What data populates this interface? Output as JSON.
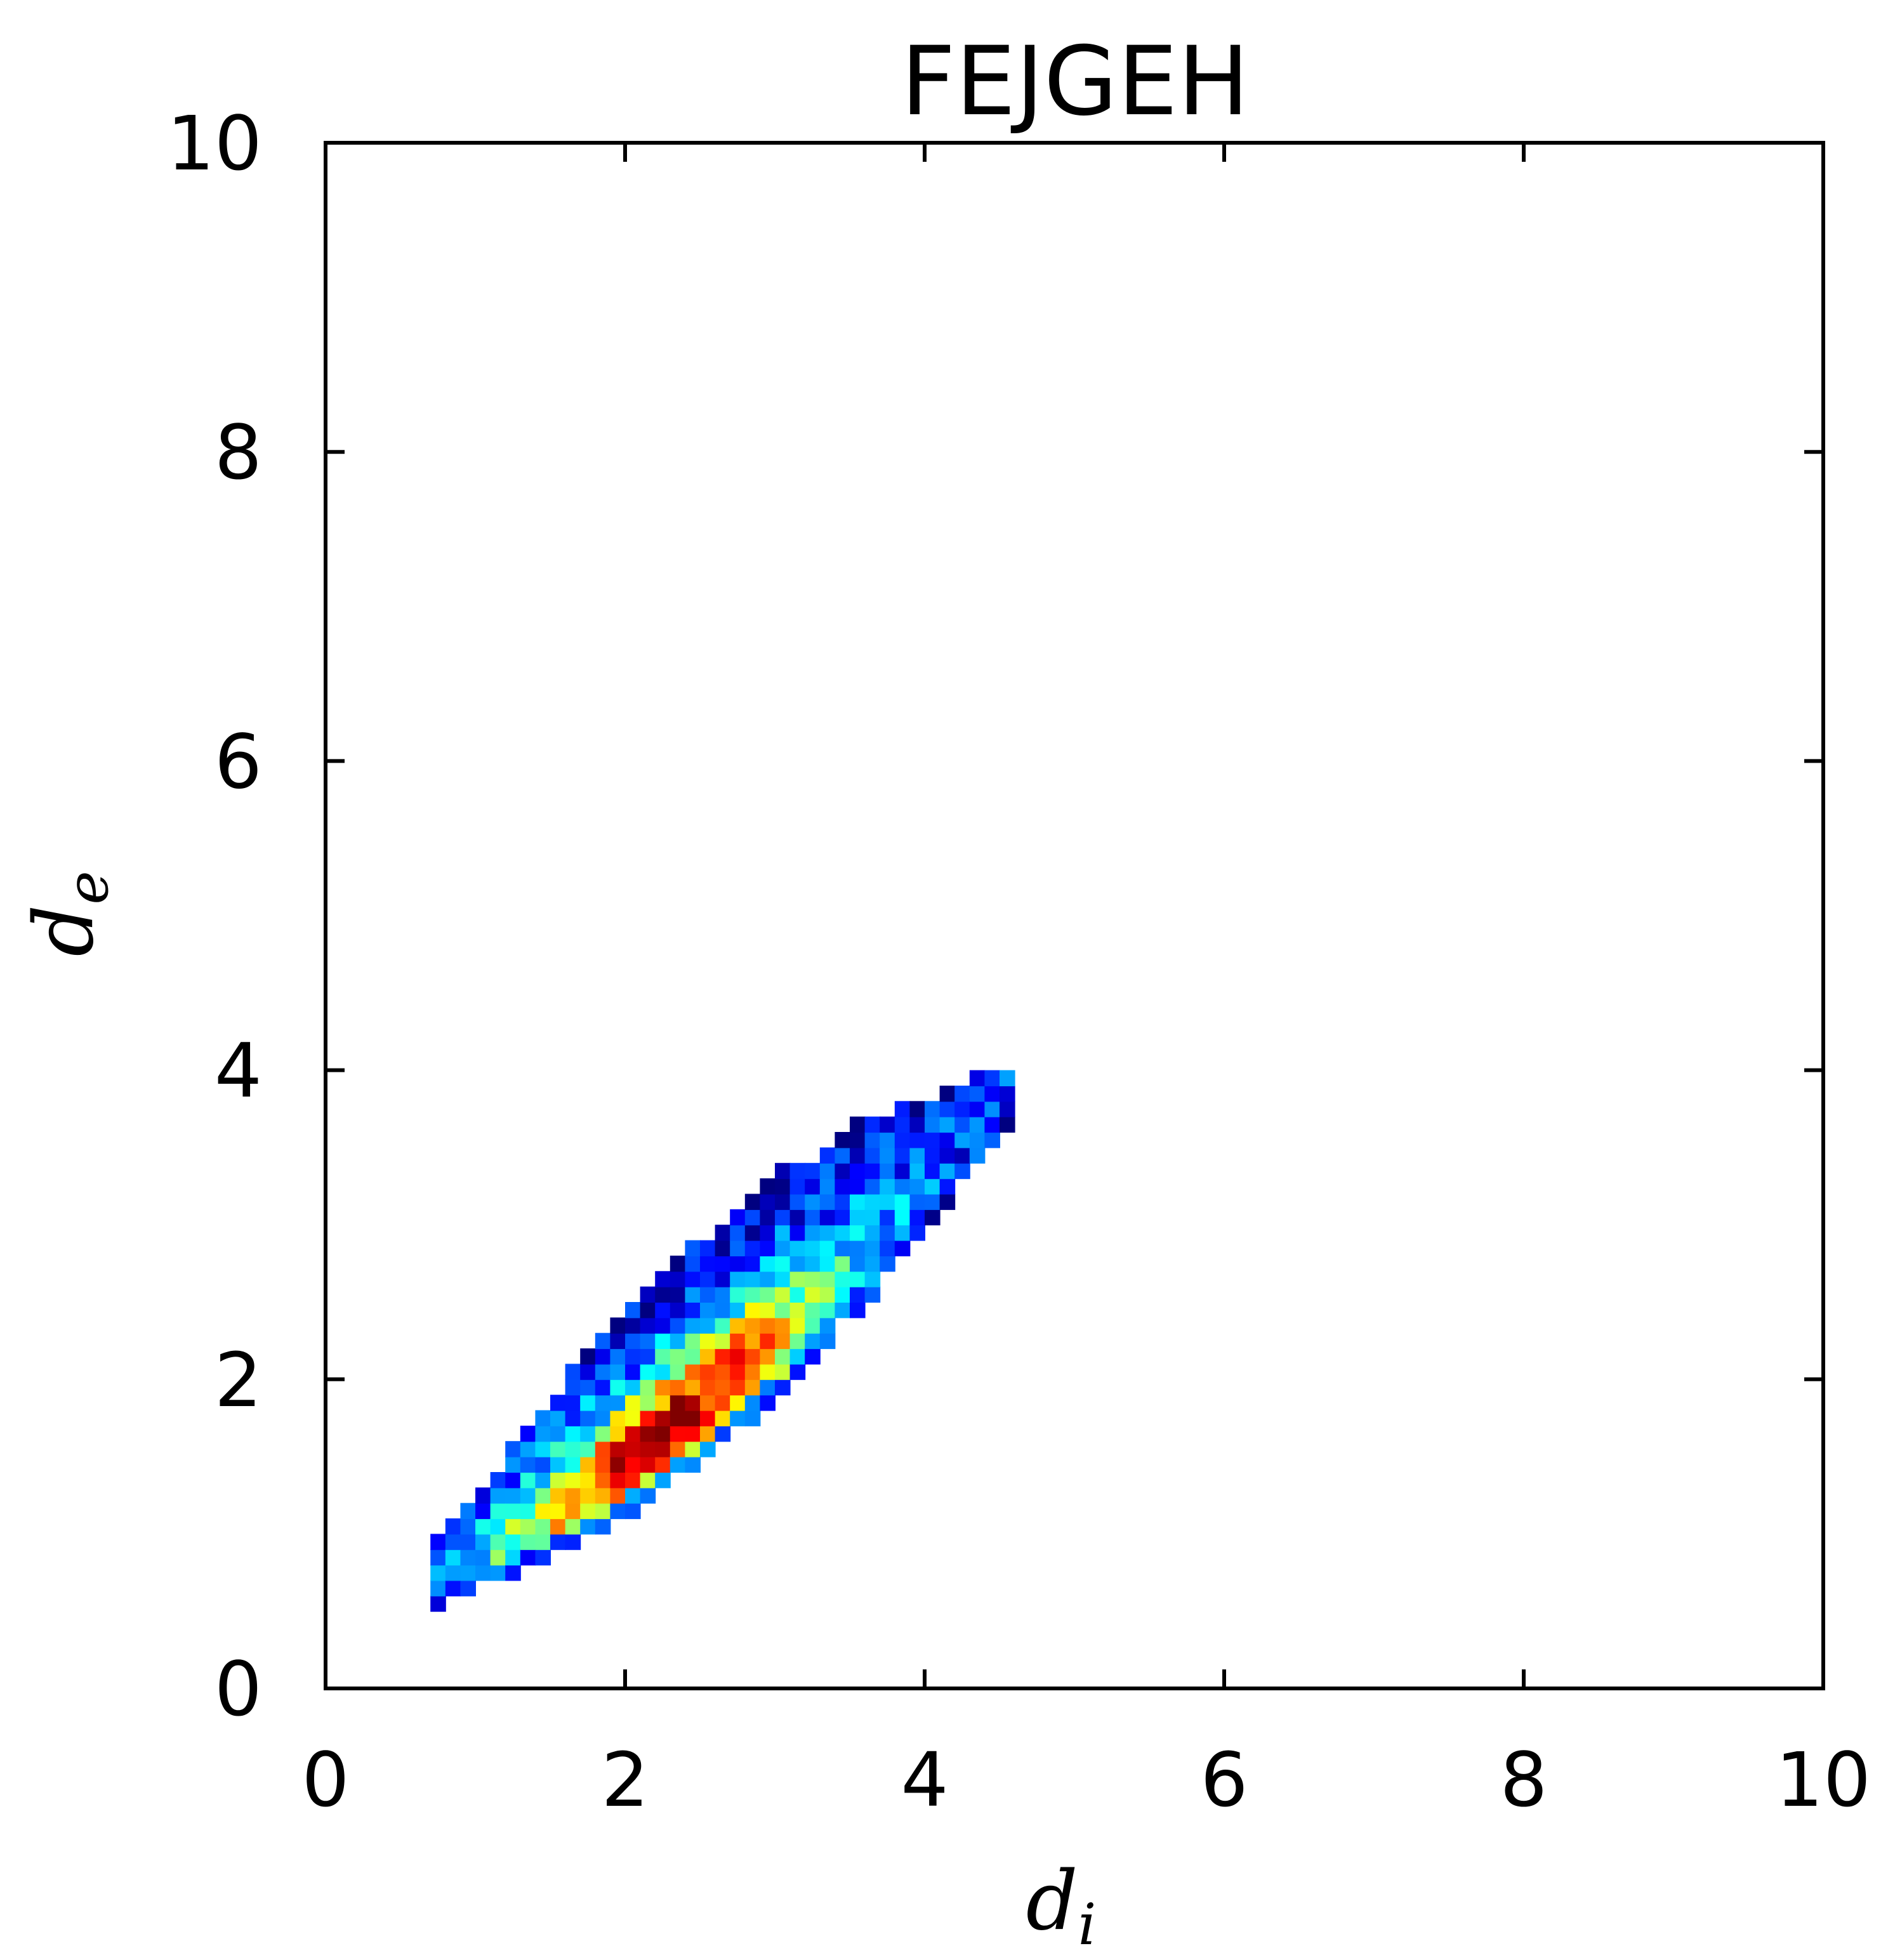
{
  "chart_data": {
    "type": "heatmap",
    "title": "FEJGEH",
    "xlabel": {
      "symbol": "d",
      "subscript": "i"
    },
    "ylabel": {
      "symbol": "d",
      "subscript": "e"
    },
    "xlim": [
      0,
      10
    ],
    "ylim": [
      0,
      10
    ],
    "xticks": [
      "0",
      "2",
      "4",
      "6",
      "8",
      "10"
    ],
    "yticks": [
      "0",
      "2",
      "4",
      "6",
      "8",
      "10"
    ],
    "grid": false,
    "colormap": "jet",
    "bin_size": 0.1,
    "density_band": {
      "x_range": [
        0.7,
        4.5
      ],
      "y_at_x_min": 0.7,
      "y_at_x_max": 3.8,
      "peak": [
        2.2,
        1.55
      ],
      "description_points": [
        [
          0.7,
          0.65
        ],
        [
          1.0,
          1.0
        ],
        [
          1.5,
          1.6
        ],
        [
          2.0,
          1.5
        ],
        [
          2.5,
          2.1
        ],
        [
          3.0,
          2.6
        ],
        [
          3.5,
          3.1
        ],
        [
          4.0,
          3.5
        ],
        [
          4.4,
          3.8
        ]
      ]
    },
    "colors": {
      "background": "#ffffff",
      "axis": "#000000"
    }
  }
}
